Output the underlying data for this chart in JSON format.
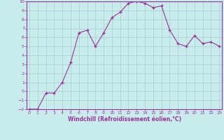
{
  "x": [
    0,
    1,
    2,
    3,
    4,
    5,
    6,
    7,
    8,
    9,
    10,
    11,
    12,
    13,
    14,
    15,
    16,
    17,
    18,
    19,
    20,
    21,
    22,
    23
  ],
  "y": [
    -2,
    -2,
    -0.2,
    -0.2,
    1,
    3.2,
    6.5,
    6.8,
    5.0,
    6.5,
    8.2,
    8.8,
    9.8,
    10.0,
    9.8,
    9.3,
    9.5,
    6.8,
    5.3,
    5.0,
    6.2,
    5.3,
    5.5,
    5.0
  ],
  "line_color": "#993399",
  "marker_color": "#993399",
  "bg_color": "#c8ecec",
  "grid_color": "#aacccc",
  "xlabel": "Windchill (Refroidissement éolien,°C)",
  "ylim": [
    -2,
    10
  ],
  "xlim": [
    0,
    23
  ],
  "yticks": [
    -2,
    -1,
    0,
    1,
    2,
    3,
    4,
    5,
    6,
    7,
    8,
    9,
    10
  ],
  "xticks": [
    0,
    1,
    2,
    3,
    4,
    5,
    6,
    7,
    8,
    9,
    10,
    11,
    12,
    13,
    14,
    15,
    16,
    17,
    18,
    19,
    20,
    21,
    22,
    23
  ]
}
